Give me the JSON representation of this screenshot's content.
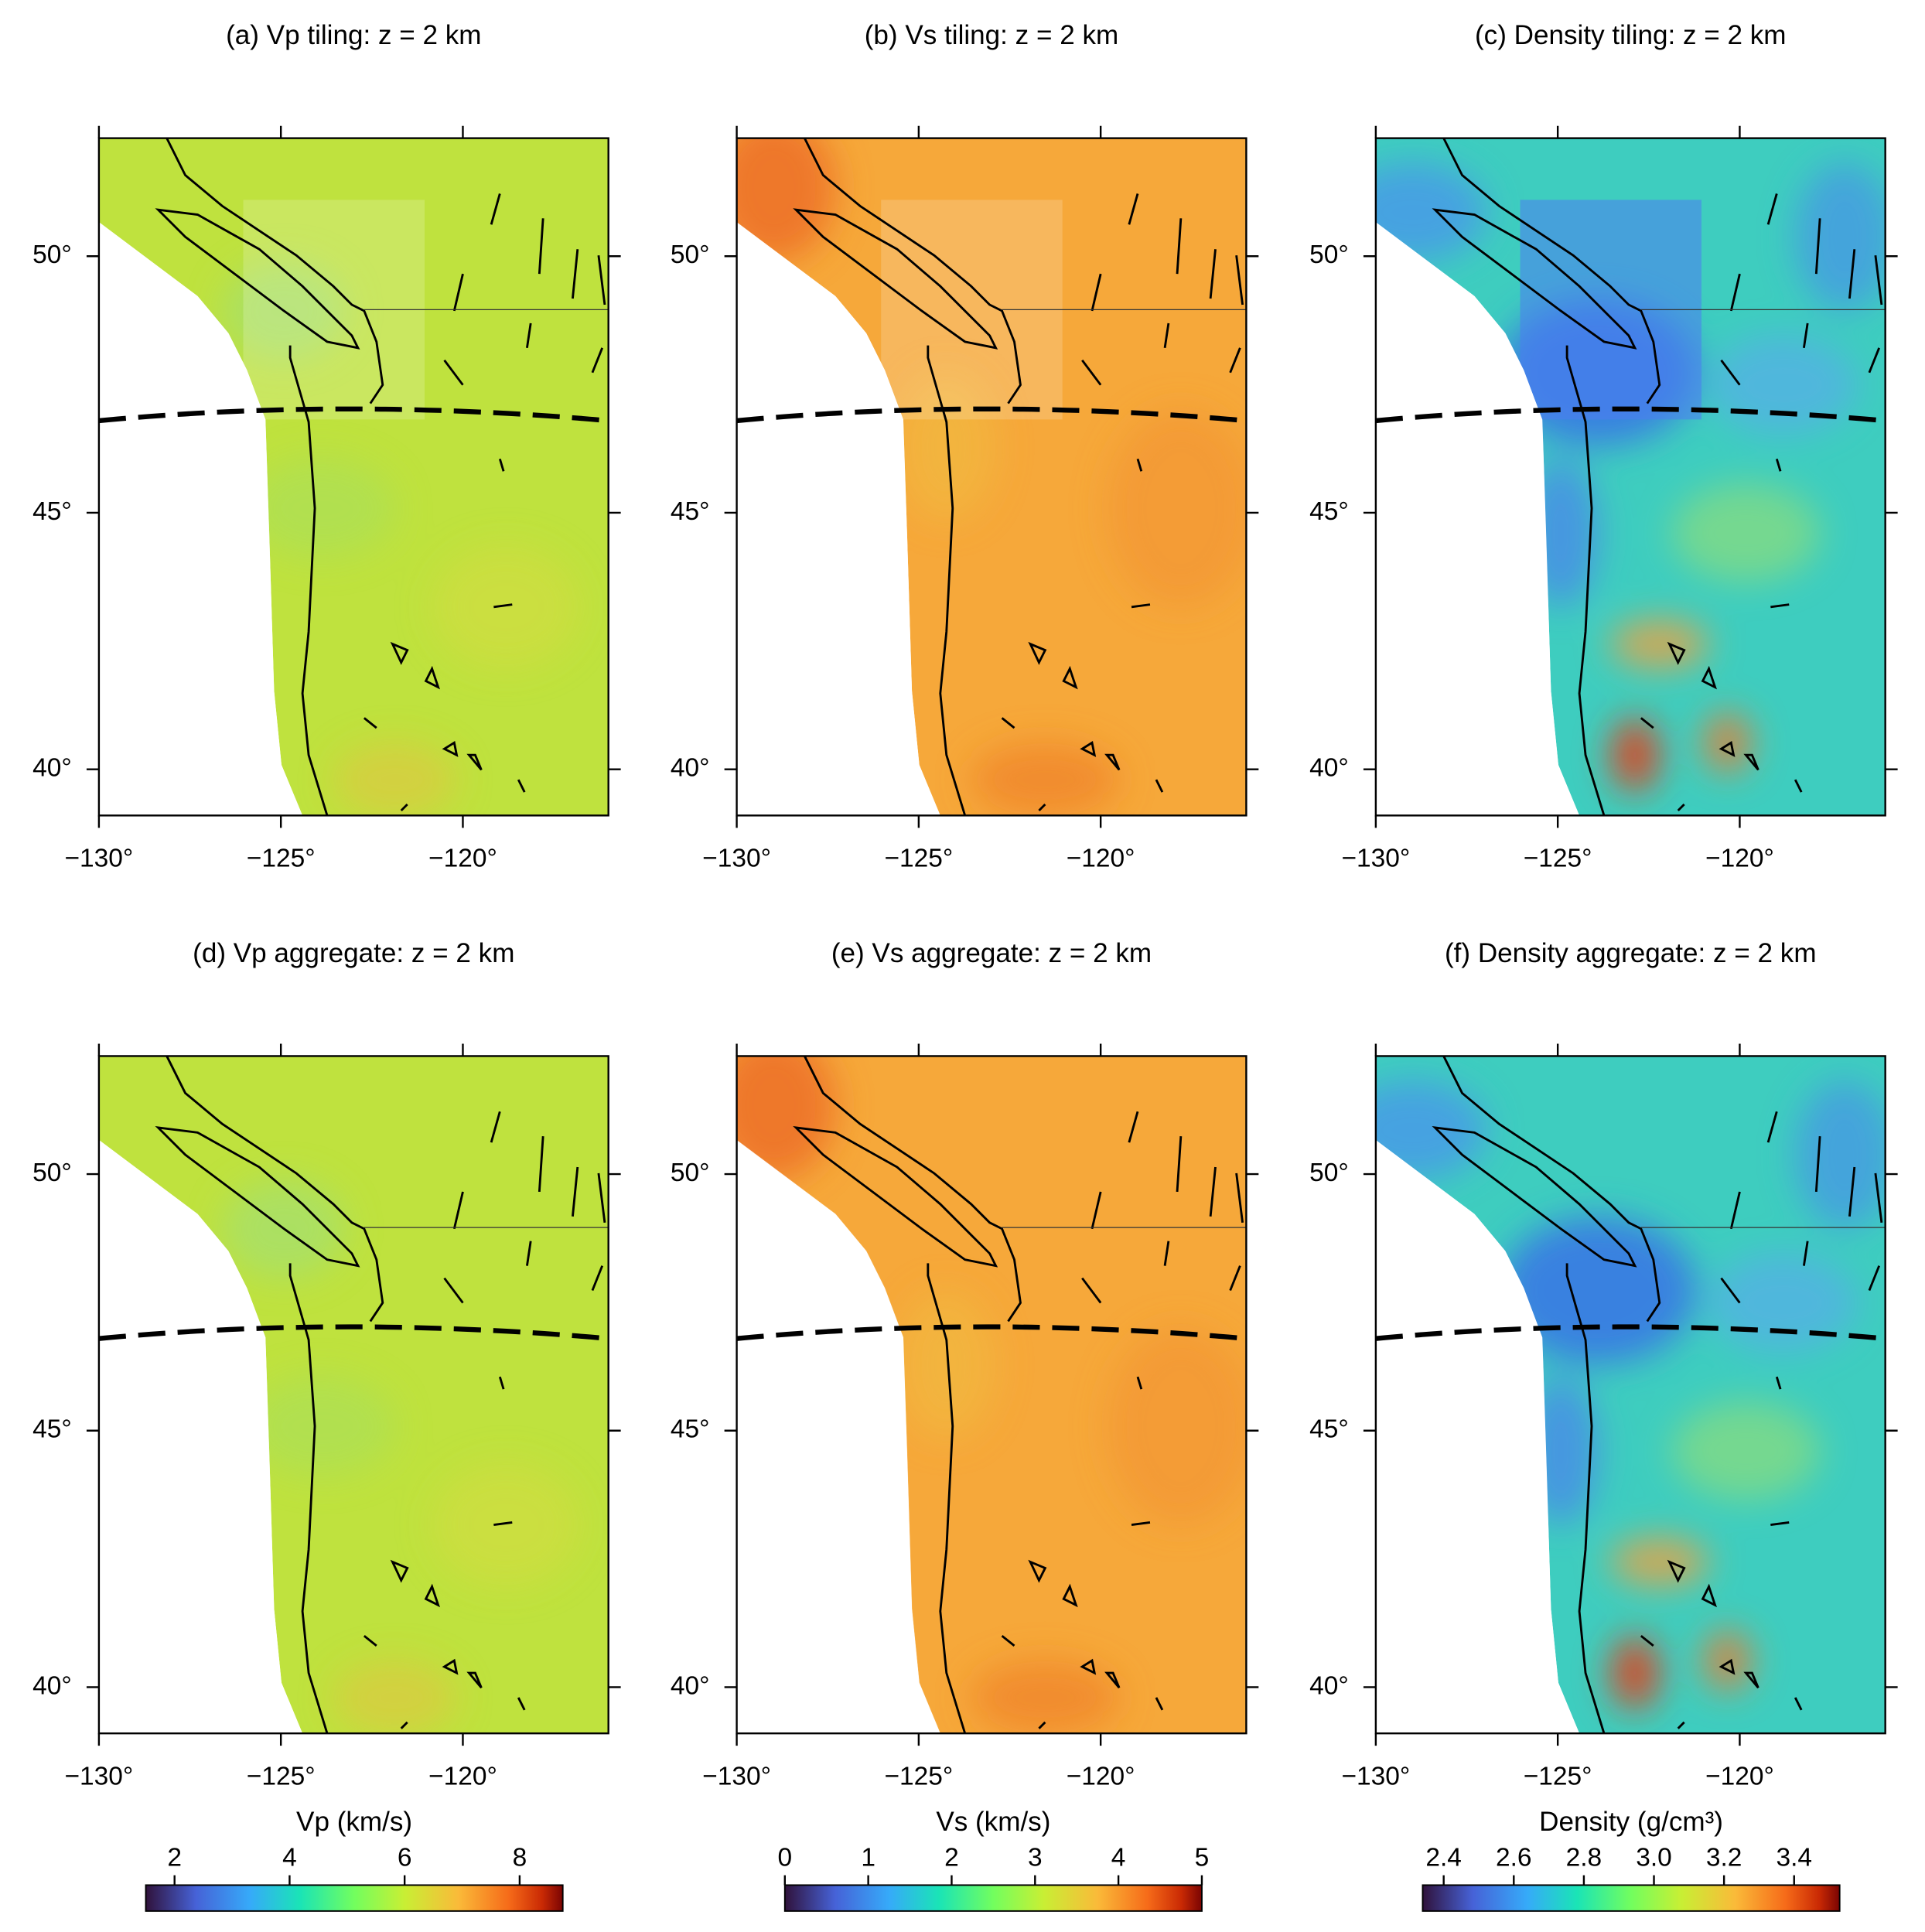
{
  "panels": [
    {
      "title": "(a) Vp tiling: z = 2 km",
      "color": "#bfe23e",
      "xlim": [
        -130,
        -116
      ],
      "ylim": [
        39.1,
        52.3
      ],
      "xticks": [
        {
          "value": -130,
          "label": "−130°"
        },
        {
          "value": -125,
          "label": "−125°"
        },
        {
          "value": -120,
          "label": "−120°"
        }
      ],
      "yticks": [
        {
          "value": 40,
          "label": "40°"
        },
        {
          "value": 45,
          "label": "45°"
        },
        {
          "value": 50,
          "label": "50°"
        }
      ]
    },
    {
      "title": "(b) Vs tiling: z = 2 km",
      "color": "#f6a83a",
      "xlim": [
        -130,
        -116
      ],
      "ylim": [
        39.1,
        52.3
      ],
      "xticks": [
        {
          "value": -130,
          "label": "−130°"
        },
        {
          "value": -125,
          "label": "−125°"
        },
        {
          "value": -120,
          "label": "−120°"
        }
      ],
      "yticks": [
        {
          "value": 40,
          "label": "40°"
        },
        {
          "value": 45,
          "label": "45°"
        },
        {
          "value": 50,
          "label": "50°"
        }
      ]
    },
    {
      "title": "(c) Density tiling: z = 2 km",
      "color": "#3ecdbf",
      "xlim": [
        -130,
        -116
      ],
      "ylim": [
        39.1,
        52.3
      ],
      "xticks": [
        {
          "value": -130,
          "label": "−130°"
        },
        {
          "value": -125,
          "label": "−125°"
        },
        {
          "value": -120,
          "label": "−120°"
        }
      ],
      "yticks": [
        {
          "value": 40,
          "label": "40°"
        },
        {
          "value": 45,
          "label": "45°"
        },
        {
          "value": 50,
          "label": "50°"
        }
      ]
    },
    {
      "title": "(d) Vp aggregate: z = 2 km",
      "color": "#bfe23e",
      "xlim": [
        -130,
        -116
      ],
      "ylim": [
        39.1,
        52.3
      ],
      "xticks": [
        {
          "value": -130,
          "label": "−130°"
        },
        {
          "value": -125,
          "label": "−125°"
        },
        {
          "value": -120,
          "label": "−120°"
        }
      ],
      "yticks": [
        {
          "value": 40,
          "label": "40°"
        },
        {
          "value": 45,
          "label": "45°"
        },
        {
          "value": 50,
          "label": "50°"
        }
      ]
    },
    {
      "title": "(e) Vs aggregate: z = 2 km",
      "color": "#f6a83a",
      "xlim": [
        -130,
        -116
      ],
      "ylim": [
        39.1,
        52.3
      ],
      "xticks": [
        {
          "value": -130,
          "label": "−130°"
        },
        {
          "value": -125,
          "label": "−125°"
        },
        {
          "value": -120,
          "label": "−120°"
        }
      ],
      "yticks": [
        {
          "value": 40,
          "label": "40°"
        },
        {
          "value": 45,
          "label": "45°"
        },
        {
          "value": 50,
          "label": "50°"
        }
      ]
    },
    {
      "title": "(f) Density aggregate: z = 2 km",
      "color": "#3ecdbf",
      "xlim": [
        -130,
        -116
      ],
      "ylim": [
        39.1,
        52.3
      ],
      "xticks": [
        {
          "value": -130,
          "label": "−130°"
        },
        {
          "value": -125,
          "label": "−125°"
        },
        {
          "value": -120,
          "label": "−120°"
        }
      ],
      "yticks": [
        {
          "value": 40,
          "label": "40°"
        },
        {
          "value": 45,
          "label": "45°"
        },
        {
          "value": 50,
          "label": "50°"
        }
      ]
    }
  ],
  "colorbars": [
    {
      "label": "Vp (km/s)",
      "lim": [
        1.5,
        8.75
      ],
      "ticks": [
        2,
        4,
        6,
        8
      ]
    },
    {
      "label": "Vs (km/s)",
      "lim": [
        0,
        5
      ],
      "ticks": [
        0,
        1,
        2,
        3,
        4,
        5
      ]
    },
    {
      "label": "Density (g/cm³)",
      "lim": [
        2.34,
        3.53
      ],
      "ticks": [
        2.4,
        2.6,
        2.8,
        {
          "value": 3,
          "label": "3.0"
        },
        3.2,
        3.4
      ]
    }
  ]
}
